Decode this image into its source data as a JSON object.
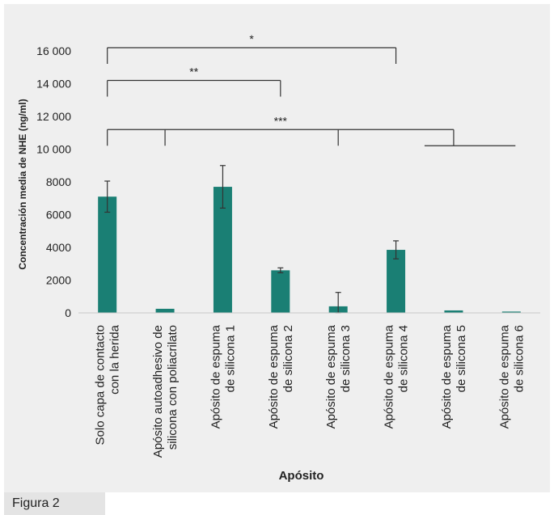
{
  "chart_data": {
    "type": "bar",
    "categories": [
      [
        "Solo capa de contacto",
        "con la herida"
      ],
      [
        "Apósito autoadhesivo de",
        "silicona con poliacrilato"
      ],
      [
        "Apósito de espuma",
        "de silicona 1"
      ],
      [
        "Apósito de espuma",
        "de silicona 2"
      ],
      [
        "Apósito de espuma",
        "de silicona 3"
      ],
      [
        "Apósito de espuma",
        "de silicona 4"
      ],
      [
        "Apósito de espuma",
        "de silicona 5"
      ],
      [
        "Apósito de espuma",
        "de silicona 6"
      ]
    ],
    "values": [
      7100,
      250,
      7700,
      2600,
      400,
      3850,
      150,
      80
    ],
    "errors": [
      950,
      0,
      1300,
      150,
      850,
      550,
      0,
      0
    ],
    "xlabel": "Apósito",
    "ylabel": "Concentración media de NHE (ng/ml)",
    "ylim": [
      0,
      16000
    ],
    "yticks": [
      0,
      2000,
      4000,
      6000,
      8000,
      10000,
      12000,
      14000,
      16000
    ],
    "ytick_labels": [
      "0",
      "2000",
      "4000",
      "6000",
      "8000",
      "10 000",
      "12 000",
      "14 000",
      "16 000"
    ],
    "bar_color": "#1a7f74",
    "significance": [
      {
        "label": "*",
        "level": 16000,
        "from": 0,
        "to": [
          5
        ]
      },
      {
        "label": "**",
        "level": 14000,
        "from": 0,
        "to": [
          3
        ]
      },
      {
        "label": "***",
        "level": 11000,
        "from": 0,
        "to": [
          1,
          4,
          6
        ],
        "group_end": 7
      }
    ]
  },
  "figure_label": "Figura 2"
}
